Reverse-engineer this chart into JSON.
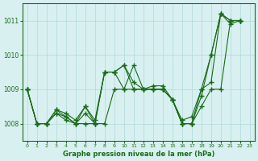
{
  "title": "Graphe pression niveau de la mer (hPa)",
  "xlabel": "Graphe pression niveau de la mer (hPa)",
  "background_color": "#d8f0f0",
  "grid_color": "#b0d8d8",
  "line_color": "#1a6b1a",
  "ylim": [
    1007.5,
    1011.5
  ],
  "xlim": [
    -0.5,
    23.5
  ],
  "yticks": [
    1008,
    1009,
    1010,
    1011
  ],
  "xticks": [
    0,
    1,
    2,
    3,
    4,
    5,
    6,
    7,
    8,
    9,
    10,
    11,
    12,
    13,
    14,
    15,
    16,
    17,
    18,
    19,
    20,
    21,
    22,
    23
  ],
  "series": [
    [
      1009,
      1008,
      1008,
      1008.3,
      1008.1,
      1008,
      1008,
      1008,
      1008,
      1009,
      1009,
      1009,
      1009,
      1009,
      1009,
      1008.7,
      1008,
      1008,
      1008.5,
      1009,
      1009,
      1011,
      1011
    ],
    [
      1009,
      1008,
      1008,
      1008.3,
      1008.2,
      1008,
      1008.5,
      1008,
      1009.5,
      1009.5,
      1009,
      1009.7,
      1009,
      1009,
      1009,
      1008.7,
      1008,
      1008,
      1008.8,
      1010,
      1011.2,
      1011,
      1011
    ],
    [
      1009,
      1008,
      1008,
      1008.4,
      1008.2,
      1008,
      1008.3,
      1008,
      1009.5,
      1009.5,
      1009.7,
      1009,
      1009,
      1009,
      1009,
      1008.7,
      1008,
      1008,
      1009,
      1010,
      1011.2,
      1011,
      1011
    ],
    [
      1009,
      1008,
      1008,
      1008.4,
      1008.3,
      1008.1,
      1008.5,
      1008.1,
      1009.5,
      1009.5,
      1009.7,
      1009.2,
      1009,
      1009.1,
      1009.1,
      1008.7,
      1008.1,
      1008.2,
      1009.0,
      1009.2,
      1011.2,
      1010.9,
      1011
    ]
  ]
}
